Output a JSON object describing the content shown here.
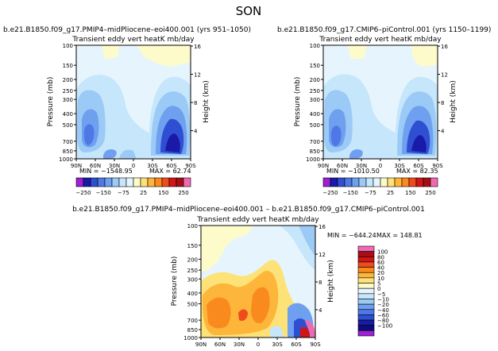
{
  "title": "SON",
  "left_header": "b.e21.B1850.f09_g17.PMIP4–midPliocene–eoi400.001  (yrs 951–1050)",
  "right_header": "b.e21.B1850.f09_g17.CMIP6–piControl.001  (yrs 1150–1199)",
  "diff_header": "b.e21.B1850.f09_g17.PMIP4–midPliocene–eoi400.001  –  b.e21.B1850.f09_g17.CMIP6–piControl.001",
  "colors": {
    "top_scale": [
      "#9e1fd6",
      "#1a1aa8",
      "#2f4fd2",
      "#4f78e6",
      "#6fa0f0",
      "#9ccaf6",
      "#c6e6fb",
      "#e6f5fd",
      "#fdfbc9",
      "#fde277",
      "#fdb53a",
      "#f98a1e",
      "#ef4b1c",
      "#d01616",
      "#a50f15",
      "#f06ab3"
    ],
    "diff_scale": [
      "#9e1fd6",
      "#0d0d78",
      "#1a1aa8",
      "#2f4fd2",
      "#4f78e6",
      "#6fa0f0",
      "#9ccaf6",
      "#c6e6fb",
      "#e6f5fd",
      "#fdfbc9",
      "#fde277",
      "#fdb53a",
      "#f98a1e",
      "#ef4b1c",
      "#d01616",
      "#a50f15",
      "#f06ab3"
    ]
  },
  "chart_data": [
    {
      "type": "heatmap",
      "title": "Transient eddy vert heatK  mb/day",
      "xlabel": "",
      "ylabel": "Pressure (mb)",
      "y2label": "Height (km)",
      "x_ticks": [
        "90N",
        "60N",
        "30N",
        "0",
        "30S",
        "60S",
        "90S"
      ],
      "y_ticks": [
        "100",
        "150",
        "200",
        "250",
        "300",
        "400",
        "500",
        "700",
        "850",
        "1000"
      ],
      "y2_ticks": [
        "16",
        "12",
        "8",
        "4"
      ],
      "min_label": "MIN = −1548.95",
      "max_label": "MAX = 62.74",
      "colorbar_labels": [
        "−250",
        "−150",
        "−75",
        "25",
        "150",
        "250"
      ]
    },
    {
      "type": "heatmap",
      "title": "Transient eddy vert heatK  mb/day",
      "xlabel": "",
      "ylabel": "Pressure (mb)",
      "y2label": "Height (km)",
      "x_ticks": [
        "90N",
        "60N",
        "30N",
        "0",
        "30S",
        "60S",
        "90S"
      ],
      "y_ticks": [
        "100",
        "150",
        "200",
        "250",
        "300",
        "400",
        "500",
        "700",
        "850",
        "1000"
      ],
      "y2_ticks": [
        "16",
        "12",
        "8",
        "4"
      ],
      "min_label": "MIN = −1010.50",
      "max_label": "MAX = 82.35",
      "colorbar_labels": [
        "−250",
        "−150",
        "−75",
        "25",
        "150",
        "250"
      ]
    },
    {
      "type": "heatmap",
      "title": "Transient eddy vert heatK  mb/day",
      "xlabel": "",
      "ylabel": "Pressure (mb)",
      "y2label": "Height (km)",
      "x_ticks": [
        "90N",
        "60N",
        "30N",
        "0",
        "30S",
        "60S",
        "90S"
      ],
      "y_ticks": [
        "100",
        "150",
        "200",
        "250",
        "300",
        "400",
        "500",
        "700",
        "850",
        "1000"
      ],
      "y2_ticks": [
        "16",
        "12",
        "8",
        "4"
      ],
      "min_label": "MIN = −644.24",
      "max_label": "MAX = 148.81",
      "colorbar_labels": [
        "100",
        "80",
        "60",
        "40",
        "20",
        "10",
        "5",
        "0",
        "−5",
        "−10",
        "−20",
        "−40",
        "−60",
        "−80",
        "−100"
      ]
    }
  ]
}
